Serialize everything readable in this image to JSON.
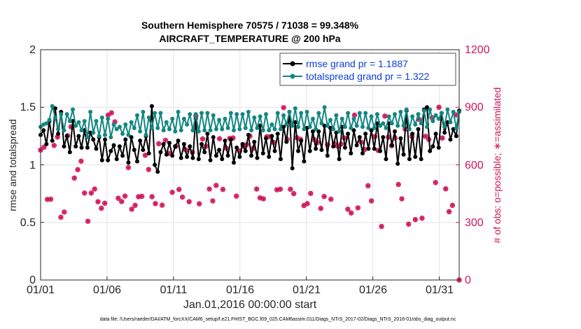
{
  "chart_data": {
    "type": "line",
    "title": "Southern Hemisphere 70575 / 71038 = 99.348%",
    "subtitle": "AIRCRAFT_TEMPERATURE @ 200 hPa",
    "xlabel": "Jan.01,2016 00:00:00 start",
    "ylabel_left": "rmse and totalspread",
    "ylabel_right": "# of obs: o=possible; ∗=assimilated",
    "ylim_left": [
      0,
      2
    ],
    "ylim_right": [
      0,
      1200
    ],
    "xlim_days": [
      0,
      31.5
    ],
    "left_ticks": [
      "0",
      "0.5",
      "1",
      "1.5",
      "2"
    ],
    "right_ticks": [
      "0",
      "300",
      "600",
      "900",
      "1200"
    ],
    "x_ticks": [
      {
        "day": 0,
        "label": "01/01"
      },
      {
        "day": 5,
        "label": "01/06"
      },
      {
        "day": 10,
        "label": "01/11"
      },
      {
        "day": 15,
        "label": "01/16"
      },
      {
        "day": 20,
        "label": "01/21"
      },
      {
        "day": 25,
        "label": "01/26"
      },
      {
        "day": 30,
        "label": "01/31"
      }
    ],
    "grid": true,
    "legend_position": "top-right",
    "series": [
      {
        "name": "rmse grand pr = 1.1887",
        "color": "#000000",
        "axis": "left",
        "values": [
          1.26,
          1.3,
          1.18,
          1.38,
          1.21,
          1.49,
          1.27,
          1.46,
          1.16,
          1.25,
          1.11,
          1.38,
          1.16,
          1.25,
          1.15,
          1.3,
          1.15,
          1.28,
          1.22,
          1.14,
          1.24,
          1.04,
          1.22,
          1.04,
          1.12,
          1.17,
          1.05,
          1.16,
          1.08,
          1.22,
          1.02,
          1.24,
          1.13,
          1.03,
          1.21,
          1.13,
          1.25,
          1.1,
          1.51,
          1.0,
          0.94,
          1.11,
          1.18,
          1.09,
          1.19,
          1.08,
          1.16,
          1.21,
          1.06,
          1.18,
          1.07,
          1.16,
          1.06,
          1.4,
          1.05,
          1.18,
          1.11,
          1.27,
          1.04,
          1.24,
          1.08,
          1.13,
          1.05,
          1.21,
          1.08,
          1.22,
          1.02,
          1.15,
          1.07,
          1.18,
          1.12,
          1.26,
          1.08,
          1.2,
          1.06,
          1.34,
          1.1,
          1.23,
          1.07,
          1.25,
          1.12,
          1.27,
          1.05,
          1.33,
          1.2,
          1.46,
          0.97,
          1.37,
          1.12,
          1.21,
          1.03,
          1.32,
          1.12,
          1.29,
          1.14,
          1.29,
          1.13,
          1.34,
          1.08,
          1.32,
          1.16,
          1.28,
          1.05,
          1.33,
          1.15,
          1.27,
          1.1,
          1.3,
          1.17,
          1.24,
          1.1,
          1.27,
          1.14,
          1.3,
          1.14,
          1.36,
          1.12,
          1.24,
          1.05,
          1.36,
          1.17,
          1.29,
          1.01,
          1.23,
          1.09,
          1.47,
          1.05,
          1.27,
          1.07,
          1.31,
          1.05,
          1.48,
          1.5,
          1.12,
          1.16,
          1.27,
          1.15,
          1.45,
          1.28,
          1.37,
          1.22,
          1.31,
          1.25,
          1.47
        ]
      },
      {
        "name": "totalspread grand pr = 1.322",
        "color": "#138781",
        "axis": "left",
        "values": [
          1.33,
          1.35,
          1.36,
          1.39,
          1.51,
          1.41,
          1.31,
          1.44,
          1.3,
          1.44,
          1.38,
          1.48,
          1.34,
          1.37,
          1.3,
          1.38,
          1.24,
          1.46,
          1.28,
          1.38,
          1.25,
          1.41,
          1.26,
          1.4,
          1.24,
          1.35,
          1.31,
          1.33,
          1.27,
          1.35,
          1.26,
          1.37,
          1.32,
          1.43,
          1.29,
          1.46,
          1.26,
          1.41,
          1.32,
          1.45,
          1.32,
          1.45,
          1.3,
          1.37,
          1.31,
          1.4,
          1.29,
          1.46,
          1.3,
          1.4,
          1.35,
          1.44,
          1.3,
          1.44,
          1.29,
          1.45,
          1.3,
          1.45,
          1.3,
          1.43,
          1.31,
          1.39,
          1.31,
          1.4,
          1.32,
          1.45,
          1.3,
          1.44,
          1.31,
          1.44,
          1.32,
          1.46,
          1.3,
          1.41,
          1.32,
          1.42,
          1.3,
          1.44,
          1.3,
          1.35,
          1.31,
          1.45,
          1.31,
          1.43,
          1.35,
          1.46,
          1.34,
          1.49,
          1.33,
          1.45,
          1.31,
          1.46,
          1.33,
          1.4,
          1.31,
          1.45,
          1.36,
          1.5,
          1.34,
          1.39,
          1.31,
          1.43,
          1.29,
          1.4,
          1.33,
          1.45,
          1.32,
          1.4,
          1.34,
          1.45,
          1.33,
          1.45,
          1.32,
          1.42,
          1.32,
          1.44,
          1.34,
          1.36,
          1.32,
          1.42,
          1.36,
          1.44,
          1.34,
          1.46,
          1.34,
          1.48,
          1.31,
          1.42,
          1.35,
          1.44,
          1.36,
          1.47,
          1.33,
          1.48,
          1.38,
          1.43,
          1.4,
          1.45,
          1.33,
          1.48,
          1.37,
          1.46,
          1.32,
          1.46
        ]
      }
    ],
    "obs_series": [
      {
        "name": "possible",
        "marker": "o",
        "color": "#d0145a",
        "axis": "right",
        "values": [
          677,
          692,
          420,
          421,
          701,
          745,
          327,
          354,
          752,
          798,
          531,
          575,
          619,
          453,
          306,
          453,
          474,
          408,
          374,
          400,
          859,
          871,
          824,
          426,
          409,
          437,
          586,
          369,
          389,
          434,
          436,
          650,
          576,
          434,
          398,
          710,
          390,
          728,
          660,
          457,
          696,
          472,
          432,
          678,
          408,
          665,
          855,
          397,
          735,
          697,
          474,
          412,
          493,
          736,
          472,
          687,
          738,
          740,
          437,
          673,
          698,
          705,
          750,
          686,
          474,
          428,
          423,
          747,
          746,
          717,
          470,
          473,
          898,
          733,
          473,
          450,
          741,
          733,
          388,
          398,
          451,
          732,
          716,
          373,
          435,
          705,
          421,
          710,
          697,
          708,
          740,
          369,
          349,
          859,
          376,
          718,
          680,
          491,
          412,
          747,
          675,
          279,
          854,
          744,
          700,
          740,
          498,
          423,
          786,
          291,
          748,
          315,
          838,
          322,
          749,
          732,
          845,
          508,
          900,
          740,
          475,
          356,
          389,
          860,
          0
        ]
      }
    ]
  },
  "footnote": "data file: /Users/raeder/DAI/ATM_forcXX/CAM6_setup/f.e21.FHIST_BGC.f09_025.CAM6assim.011/Diags_NTrS_2017-02/Diags_NTrS_2016-01/obs_diag_output.nc"
}
